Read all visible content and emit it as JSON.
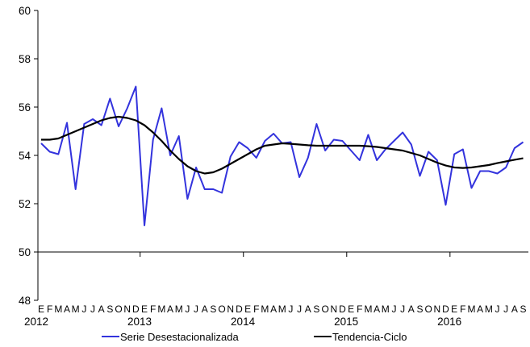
{
  "chart_data": {
    "type": "line",
    "ylim": [
      48,
      60
    ],
    "yticks": [
      48,
      50,
      52,
      54,
      56,
      58,
      60
    ],
    "grid": false,
    "baseline": 50,
    "legend_position": "bottom",
    "month_letters": [
      "E",
      "F",
      "M",
      "A",
      "M",
      "J",
      "J",
      "A",
      "S",
      "O",
      "N",
      "D"
    ],
    "year_labels": [
      "2012",
      "2013",
      "2014",
      "2015",
      "2016"
    ],
    "series": [
      {
        "name": "Serie Desestacionalizada",
        "color": "#3333dd",
        "values": [
          54.5,
          54.15,
          54.05,
          55.35,
          52.6,
          55.3,
          55.5,
          55.25,
          56.35,
          55.2,
          55.95,
          56.85,
          51.1,
          54.65,
          55.95,
          54.0,
          54.8,
          52.2,
          53.5,
          52.6,
          52.6,
          52.45,
          53.95,
          54.55,
          54.3,
          53.9,
          54.6,
          54.9,
          54.5,
          54.55,
          53.1,
          53.9,
          55.3,
          54.2,
          54.65,
          54.6,
          54.2,
          53.8,
          54.85,
          53.8,
          54.25,
          54.6,
          54.95,
          54.45,
          53.15,
          54.15,
          53.8,
          51.95,
          54.05,
          54.25,
          52.65,
          53.35,
          53.35,
          53.25,
          53.5,
          54.3,
          54.55
        ]
      },
      {
        "name": "Tendencia-Ciclo",
        "color": "#000000",
        "values": [
          54.65,
          54.65,
          54.7,
          54.85,
          55.0,
          55.15,
          55.3,
          55.45,
          55.55,
          55.6,
          55.55,
          55.45,
          55.25,
          54.95,
          54.6,
          54.2,
          53.85,
          53.55,
          53.35,
          53.25,
          53.3,
          53.45,
          53.65,
          53.85,
          54.05,
          54.25,
          54.4,
          54.45,
          54.5,
          54.48,
          54.45,
          54.42,
          54.4,
          54.4,
          54.4,
          54.4,
          54.4,
          54.4,
          54.38,
          54.35,
          54.3,
          54.25,
          54.2,
          54.1,
          54.0,
          53.85,
          53.7,
          53.58,
          53.5,
          53.48,
          53.5,
          53.55,
          53.6,
          53.68,
          53.75,
          53.82,
          53.88
        ]
      }
    ]
  }
}
